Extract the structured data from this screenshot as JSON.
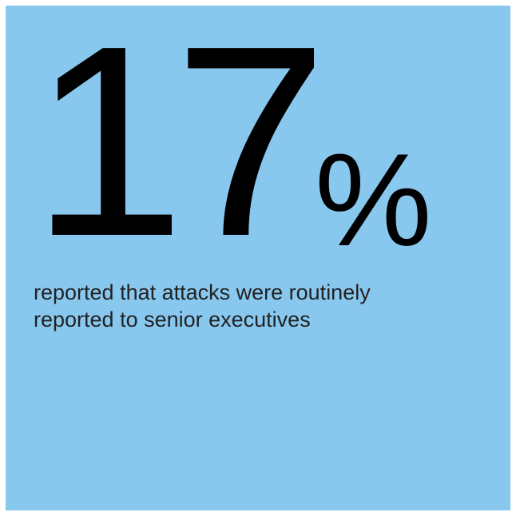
{
  "colors": {
    "background": "#89c8ee",
    "text": "#000000"
  },
  "stat": {
    "number": "17",
    "unit": "%"
  },
  "caption": {
    "line1": "reported that attacks were routinely",
    "line2": "reported to senior executives"
  }
}
